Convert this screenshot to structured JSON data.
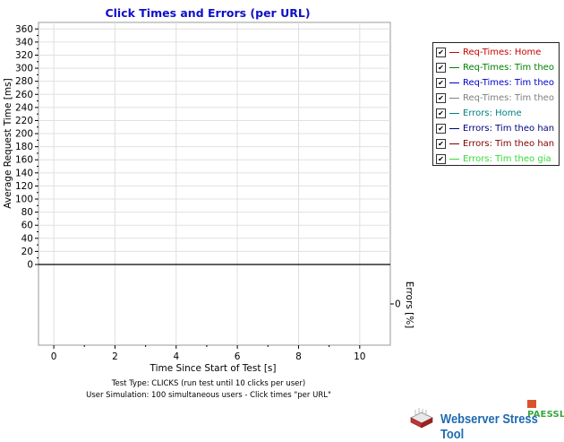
{
  "chart_data": {
    "type": "line",
    "title": "Click Times and Errors (per URL)",
    "xlabel": "Time Since Start of Test [s]",
    "ylabel": "Average Request Time [ms]",
    "y2label": "Errors [%]",
    "x_ticks": [
      0,
      2,
      4,
      6,
      8,
      10
    ],
    "xlim": [
      -0.5,
      11
    ],
    "y_ticks": [
      0,
      20,
      40,
      60,
      80,
      100,
      120,
      140,
      160,
      180,
      200,
      220,
      240,
      260,
      280,
      300,
      320,
      340,
      360
    ],
    "ylim": [
      0,
      370
    ],
    "y2_ticks": [
      0
    ],
    "grid": true,
    "legend_position": "right",
    "series": [
      {
        "name": "Req-Times: Home",
        "color": "#cc0000",
        "checked": true,
        "values": []
      },
      {
        "name": "Req-Times: Tim theo",
        "color": "#008000",
        "checked": true,
        "values": []
      },
      {
        "name": "Req-Times: Tim theo",
        "color": "#0000cc",
        "checked": true,
        "values": []
      },
      {
        "name": "Req-Times: Tim theo",
        "color": "#808080",
        "checked": true,
        "values": []
      },
      {
        "name": "Errors: Home",
        "color": "#008080",
        "checked": true,
        "values": []
      },
      {
        "name": "Errors: Tim theo han",
        "color": "#000080",
        "checked": true,
        "values": []
      },
      {
        "name": "Errors: Tim theo han",
        "color": "#800000",
        "checked": true,
        "values": []
      },
      {
        "name": "Errors: Tim theo gia",
        "color": "#33dd33",
        "checked": true,
        "values": []
      }
    ]
  },
  "footer": {
    "line1": "Test Type: CLICKS (run test until 10 clicks per user)",
    "line2": "User Simulation: 100 simultaneous users - Click times \"per URL\""
  },
  "branding": {
    "vendor": "PAESSLER",
    "product": "Webserver Stress Tool",
    "vendor_color": "#3aa640",
    "product_color": "#1f6ab1"
  },
  "icons": {
    "legend_check": "checkmark-icon",
    "brand_logo": "server-stack-icon"
  }
}
